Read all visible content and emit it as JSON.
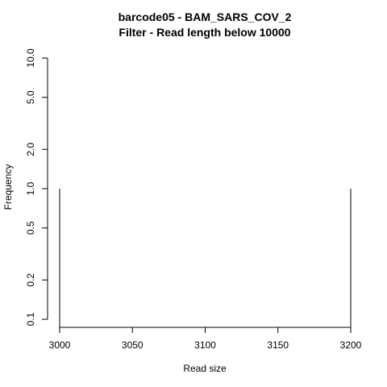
{
  "chart_data": {
    "type": "bar",
    "title": "barcode05 - BAM_SARS_COV_2",
    "subtitle": "Filter - Read length below 10000",
    "xlabel": "Read size",
    "ylabel": "Frequency",
    "x_ticks": [
      3000,
      3050,
      3100,
      3150,
      3200
    ],
    "y_ticks": [
      0.1,
      0.2,
      0.5,
      1.0,
      2.0,
      5.0,
      10.0
    ],
    "y_tick_labels": [
      "0.1",
      "0.2",
      "0.5",
      "1.0",
      "2.0",
      "5.0",
      "10.0"
    ],
    "xlim": [
      3000,
      3200
    ],
    "ylim": [
      0.1,
      10
    ],
    "y_scale": "log",
    "grid": false,
    "bars": [
      {
        "x": 3000,
        "value": 1
      },
      {
        "x": 3200,
        "value": 1
      }
    ]
  }
}
